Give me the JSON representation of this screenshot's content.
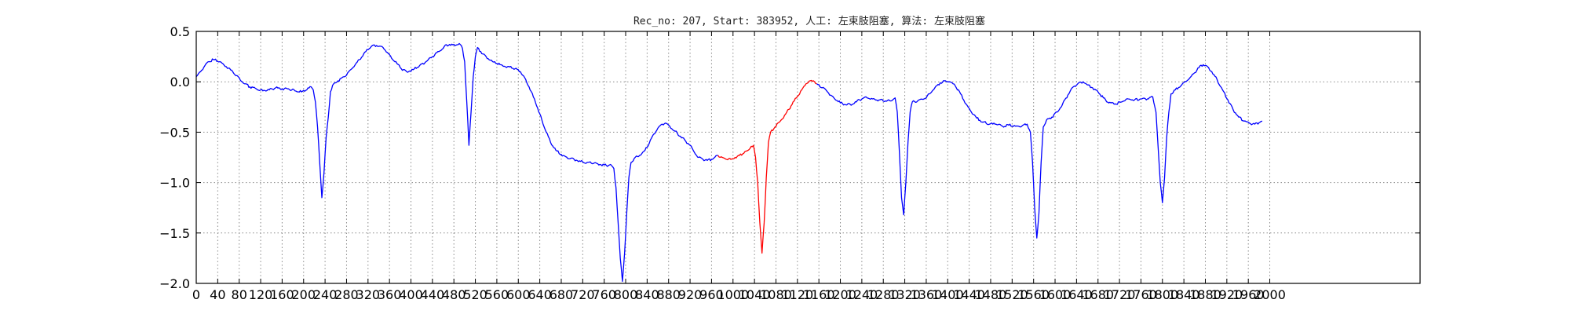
{
  "chart_data": {
    "type": "line",
    "title": "Rec_no: 207, Start: 383952, 人工: 左束肢阻塞, 算法: 左束肢阻塞",
    "xlabel": "",
    "ylabel": "",
    "xlim": [
      0,
      2280
    ],
    "ylim": [
      -2.0,
      0.5
    ],
    "yticks": [
      0.5,
      0.0,
      -0.5,
      -1.0,
      -1.5,
      -2.0
    ],
    "ytick_labels": [
      "0.5",
      "0.0",
      "−0.5",
      "−1.0",
      "−1.5",
      "−2.0"
    ],
    "xticks": [
      0,
      40,
      80,
      120,
      160,
      200,
      240,
      280,
      320,
      360,
      400,
      440,
      480,
      520,
      560,
      600,
      640,
      680,
      720,
      760,
      800,
      840,
      880,
      920,
      960,
      1000,
      1040,
      1080,
      1120,
      1160,
      1200,
      1240,
      1280,
      1320,
      1360,
      1400,
      1440,
      1480,
      1520,
      1560,
      1600,
      1640,
      1680,
      1720,
      1760,
      1800,
      1840,
      1880,
      1920,
      1960,
      2000
    ],
    "xtick_labels": [
      "0",
      "40",
      "80",
      "120",
      "160",
      "200",
      "240",
      "280",
      "320",
      "360",
      "400",
      "440",
      "480",
      "520",
      "560",
      "600",
      "640",
      "680",
      "720",
      "760",
      "800",
      "840",
      "880",
      "920",
      "960",
      "1000",
      "1040",
      "1080",
      "1120",
      "1160",
      "1200",
      "1240",
      "1280",
      "1320",
      "1360",
      "1400",
      "1440",
      "1480",
      "1520",
      "1560",
      "1600",
      "1640",
      "1680",
      "1720",
      "1760",
      "1800",
      "1840",
      "1880",
      "1920",
      "1960",
      "2000"
    ],
    "grid": true,
    "series": [
      {
        "color": "#0000ff",
        "points": [
          [
            0,
            0.05
          ],
          [
            8,
            0.1
          ],
          [
            16,
            0.16
          ],
          [
            24,
            0.2
          ],
          [
            32,
            0.22
          ],
          [
            44,
            0.2
          ],
          [
            56,
            0.15
          ],
          [
            68,
            0.1
          ],
          [
            80,
            0.04
          ],
          [
            90,
            -0.02
          ],
          [
            100,
            -0.05
          ],
          [
            112,
            -0.07
          ],
          [
            124,
            -0.09
          ],
          [
            136,
            -0.08
          ],
          [
            148,
            -0.06
          ],
          [
            160,
            -0.07
          ],
          [
            172,
            -0.07
          ],
          [
            184,
            -0.09
          ],
          [
            196,
            -0.1
          ],
          [
            206,
            -0.08
          ],
          [
            214,
            -0.05
          ],
          [
            218,
            -0.08
          ],
          [
            222,
            -0.2
          ],
          [
            226,
            -0.45
          ],
          [
            230,
            -0.8
          ],
          [
            234,
            -1.15
          ],
          [
            238,
            -0.9
          ],
          [
            242,
            -0.55
          ],
          [
            246,
            -0.35
          ],
          [
            250,
            -0.1
          ],
          [
            256,
            -0.02
          ],
          [
            264,
            0.01
          ],
          [
            276,
            0.05
          ],
          [
            290,
            0.13
          ],
          [
            304,
            0.22
          ],
          [
            316,
            0.3
          ],
          [
            326,
            0.35
          ],
          [
            336,
            0.36
          ],
          [
            348,
            0.34
          ],
          [
            358,
            0.28
          ],
          [
            366,
            0.22
          ],
          [
            374,
            0.18
          ],
          [
            382,
            0.13
          ],
          [
            392,
            0.1
          ],
          [
            404,
            0.12
          ],
          [
            416,
            0.16
          ],
          [
            428,
            0.2
          ],
          [
            440,
            0.25
          ],
          [
            452,
            0.3
          ],
          [
            462,
            0.35
          ],
          [
            472,
            0.37
          ],
          [
            482,
            0.36
          ],
          [
            490,
            0.38
          ],
          [
            496,
            0.33
          ],
          [
            500,
            0.2
          ],
          [
            504,
            -0.2
          ],
          [
            508,
            -0.63
          ],
          [
            512,
            -0.3
          ],
          [
            516,
            0.05
          ],
          [
            520,
            0.25
          ],
          [
            524,
            0.34
          ],
          [
            530,
            0.3
          ],
          [
            540,
            0.25
          ],
          [
            552,
            0.2
          ],
          [
            566,
            0.17
          ],
          [
            580,
            0.15
          ],
          [
            594,
            0.13
          ],
          [
            604,
            0.1
          ],
          [
            612,
            0.04
          ],
          [
            620,
            -0.05
          ],
          [
            628,
            -0.15
          ],
          [
            636,
            -0.26
          ],
          [
            644,
            -0.38
          ],
          [
            652,
            -0.5
          ],
          [
            660,
            -0.6
          ],
          [
            670,
            -0.68
          ],
          [
            680,
            -0.72
          ],
          [
            692,
            -0.76
          ],
          [
            704,
            -0.77
          ],
          [
            716,
            -0.79
          ],
          [
            728,
            -0.8
          ],
          [
            740,
            -0.81
          ],
          [
            752,
            -0.82
          ],
          [
            764,
            -0.83
          ],
          [
            772,
            -0.82
          ],
          [
            778,
            -0.86
          ],
          [
            782,
            -1.05
          ],
          [
            786,
            -1.4
          ],
          [
            790,
            -1.75
          ],
          [
            794,
            -1.98
          ],
          [
            798,
            -1.7
          ],
          [
            802,
            -1.3
          ],
          [
            806,
            -0.95
          ],
          [
            810,
            -0.8
          ],
          [
            816,
            -0.76
          ],
          [
            826,
            -0.73
          ],
          [
            836,
            -0.68
          ],
          [
            844,
            -0.61
          ],
          [
            852,
            -0.52
          ],
          [
            860,
            -0.46
          ],
          [
            868,
            -0.42
          ],
          [
            874,
            -0.41
          ],
          [
            882,
            -0.44
          ],
          [
            892,
            -0.49
          ],
          [
            902,
            -0.54
          ],
          [
            912,
            -0.59
          ],
          [
            920,
            -0.63
          ],
          [
            928,
            -0.7
          ],
          [
            936,
            -0.75
          ],
          [
            944,
            -0.77
          ],
          [
            952,
            -0.78
          ],
          [
            960,
            -0.77
          ],
          [
            966,
            -0.75
          ],
          [
            972,
            -0.73
          ]
        ]
      },
      {
        "color": "#ff0000",
        "points": [
          [
            972,
            -0.73
          ],
          [
            980,
            -0.75
          ],
          [
            988,
            -0.77
          ],
          [
            996,
            -0.77
          ],
          [
            1004,
            -0.75
          ],
          [
            1012,
            -0.73
          ],
          [
            1020,
            -0.71
          ],
          [
            1028,
            -0.68
          ],
          [
            1034,
            -0.64
          ],
          [
            1038,
            -0.63
          ],
          [
            1042,
            -0.75
          ],
          [
            1046,
            -1.0
          ],
          [
            1050,
            -1.4
          ],
          [
            1054,
            -1.7
          ],
          [
            1058,
            -1.4
          ],
          [
            1062,
            -0.95
          ],
          [
            1066,
            -0.6
          ],
          [
            1070,
            -0.5
          ],
          [
            1078,
            -0.45
          ],
          [
            1088,
            -0.39
          ],
          [
            1098,
            -0.32
          ],
          [
            1108,
            -0.24
          ],
          [
            1118,
            -0.16
          ],
          [
            1128,
            -0.08
          ],
          [
            1136,
            -0.02
          ],
          [
            1144,
            0.01
          ],
          [
            1150,
            0.01
          ],
          [
            1156,
            -0.02
          ]
        ]
      },
      {
        "color": "#0000ff",
        "points": [
          [
            1156,
            -0.02
          ],
          [
            1166,
            -0.06
          ],
          [
            1176,
            -0.1
          ],
          [
            1188,
            -0.16
          ],
          [
            1200,
            -0.21
          ],
          [
            1212,
            -0.23
          ],
          [
            1224,
            -0.22
          ],
          [
            1236,
            -0.18
          ],
          [
            1248,
            -0.15
          ],
          [
            1260,
            -0.17
          ],
          [
            1272,
            -0.18
          ],
          [
            1284,
            -0.19
          ],
          [
            1294,
            -0.19
          ],
          [
            1302,
            -0.16
          ],
          [
            1306,
            -0.3
          ],
          [
            1310,
            -0.7
          ],
          [
            1314,
            -1.15
          ],
          [
            1318,
            -1.32
          ],
          [
            1322,
            -1.0
          ],
          [
            1326,
            -0.6
          ],
          [
            1330,
            -0.3
          ],
          [
            1334,
            -0.2
          ],
          [
            1344,
            -0.19
          ],
          [
            1356,
            -0.17
          ],
          [
            1366,
            -0.12
          ],
          [
            1376,
            -0.06
          ],
          [
            1386,
            -0.01
          ],
          [
            1396,
            0.01
          ],
          [
            1404,
            0.0
          ],
          [
            1414,
            -0.04
          ],
          [
            1424,
            -0.12
          ],
          [
            1434,
            -0.22
          ],
          [
            1444,
            -0.3
          ],
          [
            1454,
            -0.36
          ],
          [
            1466,
            -0.4
          ],
          [
            1478,
            -0.42
          ],
          [
            1490,
            -0.42
          ],
          [
            1502,
            -0.44
          ],
          [
            1514,
            -0.43
          ],
          [
            1526,
            -0.44
          ],
          [
            1538,
            -0.44
          ],
          [
            1548,
            -0.42
          ],
          [
            1554,
            -0.5
          ],
          [
            1558,
            -0.8
          ],
          [
            1562,
            -1.25
          ],
          [
            1566,
            -1.55
          ],
          [
            1570,
            -1.3
          ],
          [
            1574,
            -0.8
          ],
          [
            1578,
            -0.45
          ],
          [
            1584,
            -0.38
          ],
          [
            1594,
            -0.35
          ],
          [
            1604,
            -0.3
          ],
          [
            1614,
            -0.22
          ],
          [
            1624,
            -0.13
          ],
          [
            1634,
            -0.05
          ],
          [
            1644,
            -0.01
          ],
          [
            1652,
            0.0
          ],
          [
            1660,
            -0.03
          ],
          [
            1670,
            -0.06
          ],
          [
            1680,
            -0.1
          ],
          [
            1690,
            -0.16
          ],
          [
            1700,
            -0.21
          ],
          [
            1712,
            -0.22
          ],
          [
            1724,
            -0.2
          ],
          [
            1736,
            -0.17
          ],
          [
            1748,
            -0.18
          ],
          [
            1760,
            -0.17
          ],
          [
            1772,
            -0.17
          ],
          [
            1782,
            -0.15
          ],
          [
            1788,
            -0.3
          ],
          [
            1792,
            -0.65
          ],
          [
            1796,
            -1.0
          ],
          [
            1800,
            -1.2
          ],
          [
            1804,
            -0.95
          ],
          [
            1808,
            -0.55
          ],
          [
            1812,
            -0.3
          ],
          [
            1816,
            -0.12
          ],
          [
            1824,
            -0.08
          ],
          [
            1836,
            -0.03
          ],
          [
            1848,
            0.02
          ],
          [
            1858,
            0.08
          ],
          [
            1868,
            0.14
          ],
          [
            1876,
            0.17
          ],
          [
            1884,
            0.15
          ],
          [
            1892,
            0.1
          ],
          [
            1902,
            0.02
          ],
          [
            1912,
            -0.08
          ],
          [
            1922,
            -0.18
          ],
          [
            1932,
            -0.28
          ],
          [
            1942,
            -0.35
          ],
          [
            1952,
            -0.39
          ],
          [
            1962,
            -0.41
          ],
          [
            1972,
            -0.42
          ],
          [
            1982,
            -0.4
          ],
          [
            1986,
            -0.39
          ]
        ]
      }
    ]
  }
}
